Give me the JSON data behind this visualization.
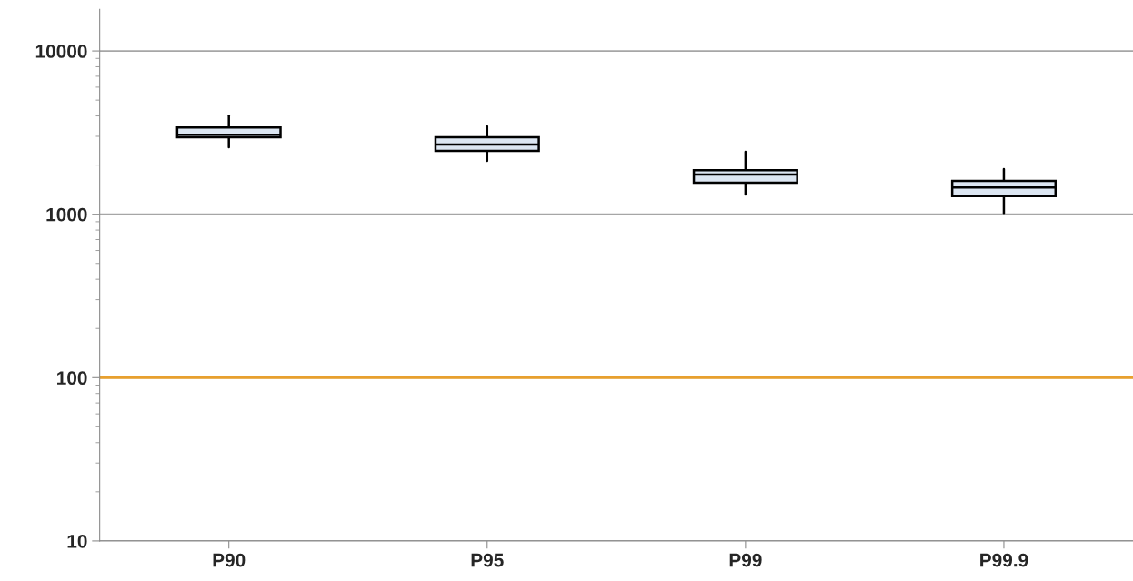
{
  "chart_data": {
    "type": "box",
    "categories": [
      "P90",
      "P95",
      "P99",
      "P99.9"
    ],
    "boxes": [
      {
        "low": 2570,
        "q1": 2960,
        "median": 3070,
        "q3": 3400,
        "high": 4020
      },
      {
        "low": 2120,
        "q1": 2440,
        "median": 2670,
        "q3": 2960,
        "high": 3450
      },
      {
        "low": 1320,
        "q1": 1560,
        "median": 1750,
        "q3": 1860,
        "high": 2410
      },
      {
        "low": 1020,
        "q1": 1290,
        "median": 1460,
        "q3": 1600,
        "high": 1890
      }
    ],
    "color": "#dce6f2",
    "log": true,
    "ylim": [
      10,
      18000
    ],
    "yticks": [
      10,
      100,
      1000,
      10000
    ],
    "grid": "y",
    "ref_lines": [
      {
        "axis": "y",
        "value": 100,
        "color": "#e8a02e"
      }
    ]
  }
}
